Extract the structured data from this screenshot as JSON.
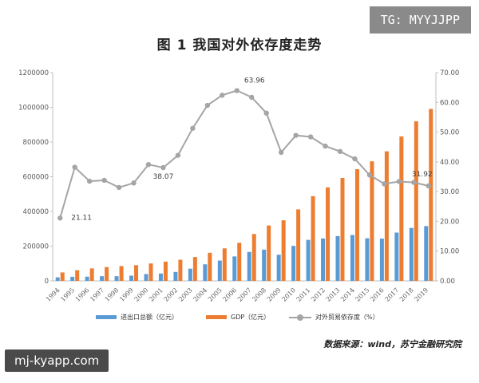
{
  "watermark_top": "TG: MYYJJPP",
  "watermark_bottom": "mj-kyapp.com",
  "source": "数据来源：wind，苏宁金融研究院",
  "colors": {
    "trade": "#5b9bd5",
    "gdp": "#ed7d31",
    "dependency": "#a5a5a5"
  },
  "chart_data": {
    "type": "bar",
    "title": "图 1    我国对外依存度走势",
    "categories": [
      "1994",
      "1995",
      "1996",
      "1997",
      "1998",
      "1999",
      "2000",
      "2001",
      "2002",
      "2003",
      "2004",
      "2005",
      "2006",
      "2007",
      "2008",
      "2009",
      "2010",
      "2011",
      "2012",
      "2013",
      "2014",
      "2015",
      "2016",
      "2017",
      "2018",
      "2019"
    ],
    "series": [
      {
        "name": "进出口总额（亿元）",
        "type": "bar",
        "axis": "left",
        "values": [
          20400,
          23500,
          24100,
          26900,
          26800,
          29900,
          39300,
          42200,
          51400,
          70500,
          95500,
          116900,
          140900,
          166700,
          179900,
          150600,
          201700,
          236400,
          244200,
          258200,
          264200,
          245500,
          243400,
          278100,
          305000,
          315600
        ]
      },
      {
        "name": "GDP（亿元）",
        "type": "bar",
        "axis": "left",
        "values": [
          48600,
          61300,
          71800,
          79700,
          85200,
          90600,
          100300,
          111000,
          121700,
          137400,
          161800,
          187300,
          219400,
          270100,
          319200,
          349000,
          412100,
          487900,
          538600,
          592900,
          643600,
          688900,
          746400,
          832000,
          919300,
          990900
        ]
      },
      {
        "name": "对外贸易依存度（%）",
        "type": "line",
        "axis": "right",
        "values": [
          21.11,
          38.2,
          33.5,
          33.8,
          31.4,
          32.9,
          39.1,
          38.07,
          42.2,
          51.3,
          59.0,
          62.4,
          63.96,
          61.7,
          56.4,
          43.2,
          48.9,
          48.4,
          45.3,
          43.5,
          41.0,
          35.6,
          32.6,
          33.4,
          33.1,
          31.92
        ]
      }
    ],
    "y_left": {
      "min": 0,
      "max": 1200000,
      "ticks": [
        "0",
        "200000",
        "400000",
        "600000",
        "800000",
        "1000000",
        "1200000"
      ]
    },
    "y_right": {
      "min": 0,
      "max": 70,
      "ticks": [
        "0.00",
        "10.00",
        "20.00",
        "30.00",
        "40.00",
        "50.00",
        "60.00",
        "70.00"
      ]
    },
    "annotations": [
      {
        "index": 0,
        "text": "21.11"
      },
      {
        "index": 7,
        "text": "38.07"
      },
      {
        "index": 12,
        "text": "63.96"
      },
      {
        "index": 25,
        "text": "31.92"
      }
    ],
    "legend_position": "bottom",
    "grid": false
  }
}
